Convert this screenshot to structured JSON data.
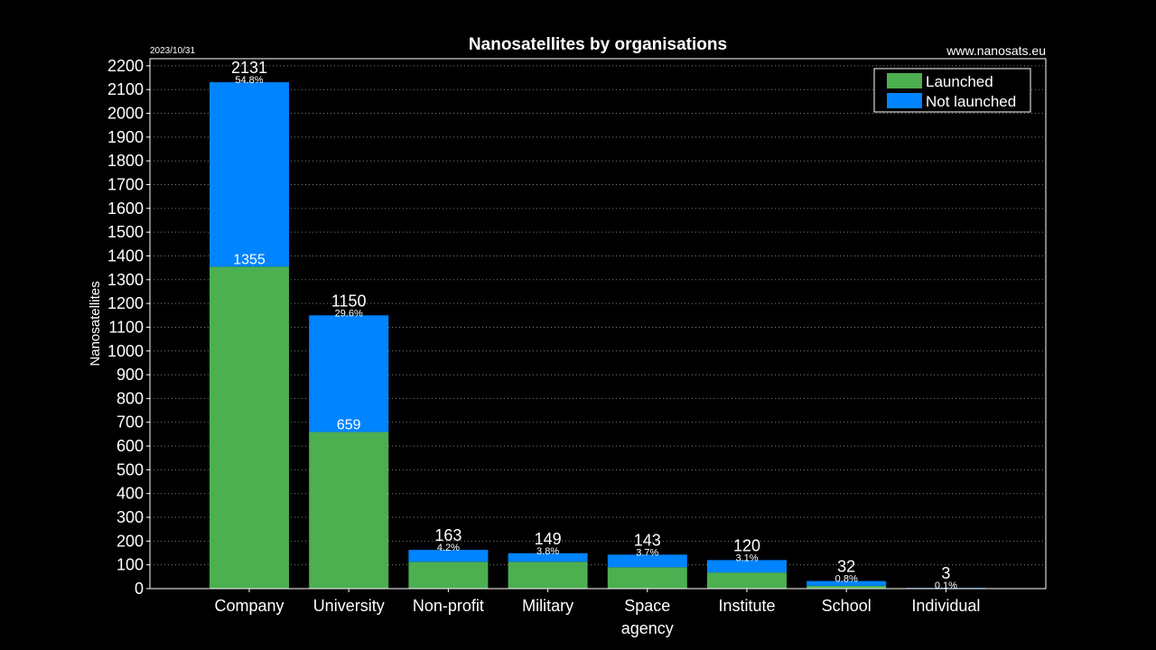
{
  "header": {
    "date": "2023/10/31",
    "website": "www.nanosats.eu"
  },
  "chart_data": {
    "type": "bar",
    "stacked": true,
    "title": "Nanosatellites by organisations",
    "xlabel": "",
    "ylabel": "Nanosatellites",
    "ylim": [
      0,
      2200
    ],
    "yticks": [
      0,
      100,
      200,
      300,
      400,
      500,
      600,
      700,
      800,
      900,
      1000,
      1100,
      1200,
      1300,
      1400,
      1500,
      1600,
      1700,
      1800,
      1900,
      2000,
      2100,
      2200
    ],
    "grid": true,
    "legend_position": "top-right",
    "categories": [
      "Company",
      "University",
      "Non-profit",
      "Military",
      "Space\nagency",
      "Institute",
      "School",
      "Individual"
    ],
    "series": [
      {
        "name": "Launched",
        "color": "#4caf50",
        "values": [
          1355,
          659,
          113,
          113,
          90,
          68,
          12,
          0
        ]
      },
      {
        "name": "Not launched",
        "color": "#0084ff",
        "values": [
          776,
          491,
          50,
          36,
          53,
          52,
          20,
          3
        ]
      }
    ],
    "totals": [
      2131,
      1150,
      163,
      149,
      143,
      120,
      32,
      3
    ],
    "totals_labels": [
      "2131",
      "1150",
      "163",
      "149",
      "143",
      "120",
      "32",
      "3"
    ],
    "percentages": [
      "54.8%",
      "29.6%",
      "4.2%",
      "3.8%",
      "3.7%",
      "3.1%",
      "0.8%",
      "0.1%"
    ],
    "launched_labels": [
      "1355",
      "659",
      "",
      "",
      "",
      "",
      "",
      ""
    ]
  }
}
